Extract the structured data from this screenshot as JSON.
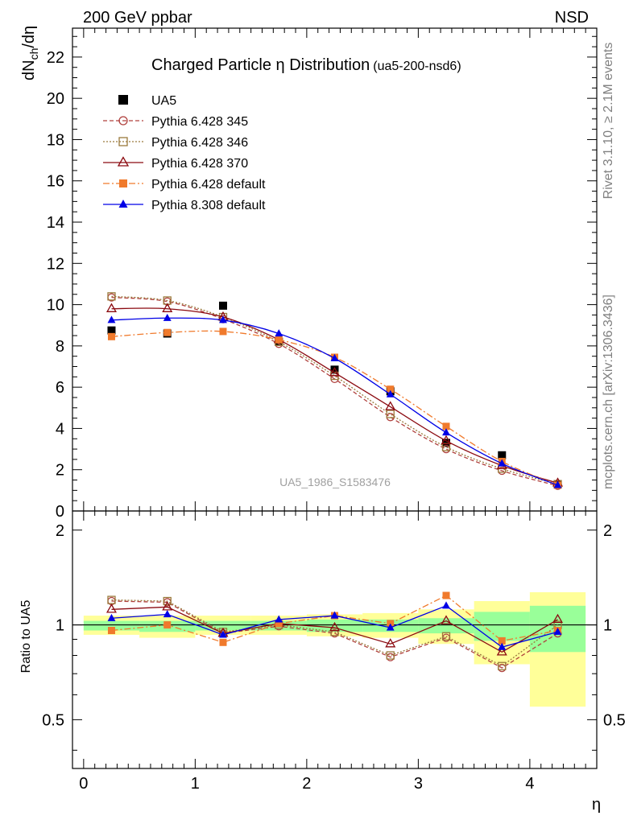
{
  "header": {
    "left": "200 GeV ppbar",
    "right": "NSD"
  },
  "side": {
    "rivet": "Rivet 3.1.10, ≥ 2.1M events",
    "mcplots": "mcplots.cern.ch [arXiv:1306.3436]"
  },
  "watermark": "UA5_1986_S1583476",
  "chart_data": [
    {
      "type": "line",
      "title": "Charged Particle η Distribution",
      "subtitle": "(ua5-200-nsd6)",
      "ylabel": "dN_ch/dη",
      "xlim": [
        -0.1,
        4.6
      ],
      "ylim": [
        0,
        23.4
      ],
      "x": [
        0.25,
        0.75,
        1.25,
        1.75,
        2.25,
        2.75,
        3.25,
        3.75,
        4.25
      ],
      "yticks": [
        0,
        2,
        4,
        6,
        8,
        10,
        12,
        14,
        16,
        18,
        20,
        22
      ],
      "legend_position": "top-left",
      "series": [
        {
          "name": "UA5",
          "color": "#000000",
          "marker": "square",
          "values": [
            8.75,
            8.6,
            9.95,
            8.2,
            6.85,
            5.8,
            3.3,
            2.7,
            1.3
          ]
        },
        {
          "name": "Pythia 6.428 345",
          "color": "#b0413e",
          "marker": "circle-open",
          "dash": "5,3",
          "values": [
            10.35,
            10.15,
            9.3,
            8.1,
            6.4,
            4.55,
            3.0,
            1.95,
            1.22
          ]
        },
        {
          "name": "Pythia 6.428 346",
          "color": "#9a7a3c",
          "marker": "square-open",
          "dash": "2,2",
          "values": [
            10.4,
            10.2,
            9.4,
            8.2,
            6.55,
            4.7,
            3.1,
            2.05,
            1.3
          ]
        },
        {
          "name": "Pythia 6.428 370",
          "color": "#8b0a10",
          "marker": "triangle-open",
          "dash": "",
          "values": [
            9.8,
            9.8,
            9.4,
            8.3,
            6.7,
            5.05,
            3.4,
            2.2,
            1.35
          ]
        },
        {
          "name": "Pythia 6.428 default",
          "color": "#f07a2c",
          "marker": "square",
          "dash": "8,3,2,3",
          "values": [
            8.45,
            8.65,
            8.7,
            8.3,
            7.45,
            5.9,
            4.1,
            2.4,
            1.25
          ]
        },
        {
          "name": "Pythia 8.308 default",
          "color": "#0000e6",
          "marker": "triangle",
          "dash": "",
          "values": [
            9.25,
            9.35,
            9.25,
            8.6,
            7.4,
            5.65,
            3.8,
            2.3,
            1.25
          ]
        }
      ]
    },
    {
      "type": "line",
      "ylabel": "Ratio to UA5",
      "xlabel": "η",
      "xlim": [
        -0.1,
        4.6
      ],
      "ylim": [
        0.35,
        2.3
      ],
      "x": [
        0.25,
        0.75,
        1.25,
        1.75,
        2.25,
        2.75,
        3.25,
        3.75,
        4.25
      ],
      "xticks": [
        0,
        1,
        2,
        3,
        4
      ],
      "yticks": [
        0.5,
        1,
        2
      ],
      "bands": {
        "edges": [
          0,
          0.5,
          1,
          1.5,
          2,
          2.5,
          3,
          3.5,
          4,
          4.5
        ],
        "yellow": [
          [
            0.93,
            1.07
          ],
          [
            0.91,
            1.07
          ],
          [
            0.93,
            1.07
          ],
          [
            0.93,
            1.07
          ],
          [
            0.92,
            1.08
          ],
          [
            0.91,
            1.09
          ],
          [
            0.87,
            1.12
          ],
          [
            0.75,
            1.19
          ],
          [
            0.55,
            1.27
          ]
        ],
        "green": [
          [
            0.96,
            1.03
          ],
          [
            0.95,
            1.03
          ],
          [
            0.96,
            1.03
          ],
          [
            0.96,
            1.03
          ],
          [
            0.95,
            1.04
          ],
          [
            0.95,
            1.04
          ],
          [
            0.94,
            1.05
          ],
          [
            0.89,
            1.1
          ],
          [
            0.82,
            1.15
          ]
        ]
      },
      "series": [
        {
          "name": "Pythia 6.428 345",
          "color": "#b0413e",
          "marker": "circle-open",
          "dash": "5,3",
          "values": [
            1.19,
            1.18,
            0.94,
            0.99,
            0.94,
            0.79,
            0.91,
            0.73,
            0.94
          ]
        },
        {
          "name": "Pythia 6.428 346",
          "color": "#9a7a3c",
          "marker": "square-open",
          "dash": "2,2",
          "values": [
            1.2,
            1.19,
            0.95,
            1.0,
            0.95,
            0.8,
            0.92,
            0.74,
            1.0
          ]
        },
        {
          "name": "Pythia 6.428 370",
          "color": "#8b0a10",
          "marker": "triangle-open",
          "dash": "",
          "values": [
            1.12,
            1.14,
            0.94,
            1.01,
            0.98,
            0.87,
            1.03,
            0.82,
            1.04
          ]
        },
        {
          "name": "Pythia 6.428 default",
          "color": "#f07a2c",
          "marker": "square",
          "dash": "8,3,2,3",
          "values": [
            0.96,
            1.0,
            0.88,
            1.01,
            1.07,
            1.01,
            1.24,
            0.89,
            0.96
          ]
        },
        {
          "name": "Pythia 8.308 default",
          "color": "#0000e6",
          "marker": "triangle",
          "dash": "",
          "values": [
            1.05,
            1.08,
            0.93,
            1.04,
            1.07,
            0.98,
            1.15,
            0.85,
            0.95
          ]
        }
      ]
    }
  ]
}
